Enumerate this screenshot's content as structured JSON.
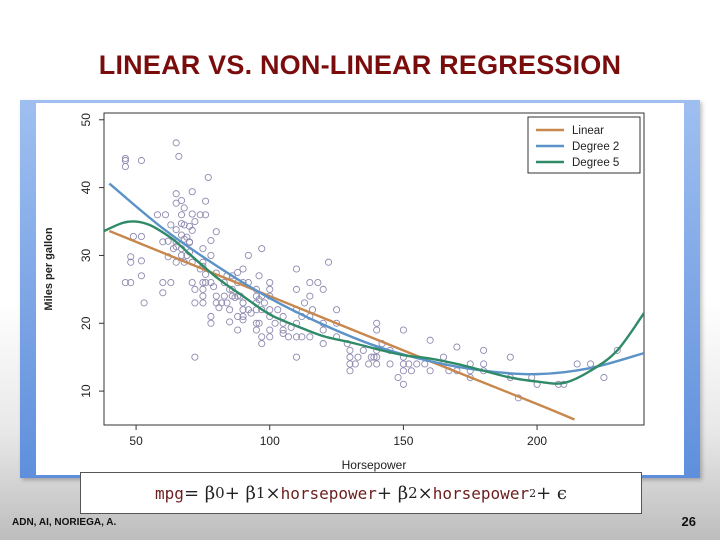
{
  "slide": {
    "title": "LINEAR VS. NON-LINEAR REGRESSION",
    "footer_left": "ADN, AI, NORIEGA, A.",
    "page_number": "26",
    "title_color": "#7a0c0c",
    "panel_color": "#6f9ae0"
  },
  "formula": {
    "p1": "mpg",
    "p2": " = β",
    "s0": "0",
    "p3": " + β",
    "s1": "1",
    "p4": " × ",
    "p5": "horsepower",
    "p6": " + β",
    "s2": "2",
    "p7": " × ",
    "p8": "horsepower",
    "exp": "2",
    "p9": " + ϵ"
  },
  "chart_data": {
    "type": "scatter",
    "xlabel": "Horsepower",
    "ylabel": "Miles per gallon",
    "xlim": [
      38,
      240
    ],
    "ylim": [
      5,
      51
    ],
    "xticks": [
      50,
      100,
      150,
      200
    ],
    "yticks": [
      10,
      20,
      30,
      40,
      50
    ],
    "legend_position": "top-right",
    "point_color": "#8e8ab0",
    "points": [
      [
        46,
        26
      ],
      [
        46,
        43.1
      ],
      [
        46,
        44.3
      ],
      [
        46,
        44
      ],
      [
        48,
        29
      ],
      [
        48,
        29.8
      ],
      [
        48,
        26
      ],
      [
        49,
        32.8
      ],
      [
        52,
        27
      ],
      [
        52,
        29.2
      ],
      [
        52,
        44
      ],
      [
        52,
        32.8
      ],
      [
        53,
        23
      ],
      [
        58,
        36
      ],
      [
        60,
        32
      ],
      [
        60,
        26
      ],
      [
        60,
        24.5
      ],
      [
        61,
        36
      ],
      [
        62,
        32.1
      ],
      [
        62,
        29.8
      ],
      [
        63,
        34.5
      ],
      [
        63,
        26
      ],
      [
        64,
        31
      ],
      [
        65,
        31.3
      ],
      [
        65,
        32
      ],
      [
        65,
        33.8
      ],
      [
        65,
        37.7
      ],
      [
        65,
        39.1
      ],
      [
        65,
        29
      ],
      [
        65,
        46.6
      ],
      [
        66,
        44.6
      ],
      [
        67,
        31
      ],
      [
        67,
        36
      ],
      [
        67,
        38.1
      ],
      [
        67,
        30
      ],
      [
        67,
        33
      ],
      [
        67,
        34.7
      ],
      [
        68,
        29
      ],
      [
        68,
        34.5
      ],
      [
        68,
        32.4
      ],
      [
        68,
        37
      ],
      [
        69,
        30
      ],
      [
        69,
        32.7
      ],
      [
        70,
        30.5
      ],
      [
        70,
        32
      ],
      [
        70,
        31.9
      ],
      [
        70,
        34.3
      ],
      [
        71,
        36.1
      ],
      [
        71,
        33.7
      ],
      [
        71,
        29
      ],
      [
        71,
        26
      ],
      [
        71,
        39.4
      ],
      [
        72,
        25
      ],
      [
        72,
        35
      ],
      [
        72,
        15
      ],
      [
        72,
        23
      ],
      [
        74,
        28
      ],
      [
        74,
        36
      ],
      [
        75,
        24
      ],
      [
        75,
        25
      ],
      [
        75,
        26
      ],
      [
        75,
        31
      ],
      [
        75,
        28.4
      ],
      [
        75,
        29
      ],
      [
        75,
        23
      ],
      [
        76,
        36
      ],
      [
        76,
        27.2
      ],
      [
        76,
        38
      ],
      [
        76,
        26
      ],
      [
        77,
        41.5
      ],
      [
        78,
        21
      ],
      [
        78,
        30
      ],
      [
        78,
        26
      ],
      [
        78,
        32.2
      ],
      [
        78,
        20
      ],
      [
        79,
        25.4
      ],
      [
        80,
        24
      ],
      [
        80,
        27.4
      ],
      [
        80,
        33.5
      ],
      [
        80,
        23
      ],
      [
        81,
        22.3
      ],
      [
        82,
        23
      ],
      [
        83,
        24
      ],
      [
        83,
        26
      ],
      [
        84,
        23
      ],
      [
        84,
        27
      ],
      [
        85,
        25
      ],
      [
        85,
        20.2
      ],
      [
        85,
        22
      ],
      [
        86,
        25
      ],
      [
        86,
        27
      ],
      [
        86,
        24
      ],
      [
        87,
        23.8
      ],
      [
        88,
        24
      ],
      [
        88,
        26
      ],
      [
        88,
        21
      ],
      [
        88,
        19
      ],
      [
        88,
        27.5
      ],
      [
        89,
        24
      ],
      [
        90,
        20.5
      ],
      [
        90,
        28
      ],
      [
        90,
        23
      ],
      [
        90,
        21
      ],
      [
        90,
        23
      ],
      [
        90,
        22
      ],
      [
        90,
        26
      ],
      [
        92,
        26
      ],
      [
        92,
        30
      ],
      [
        92,
        22
      ],
      [
        93,
        21.5
      ],
      [
        95,
        22
      ],
      [
        95,
        20
      ],
      [
        95,
        19
      ],
      [
        95,
        23
      ],
      [
        95,
        24
      ],
      [
        95,
        25
      ],
      [
        96,
        20
      ],
      [
        96,
        27
      ],
      [
        96,
        23.5
      ],
      [
        97,
        22
      ],
      [
        97,
        18
      ],
      [
        97,
        17
      ],
      [
        97,
        31
      ],
      [
        97,
        24
      ],
      [
        98,
        23
      ],
      [
        100,
        19
      ],
      [
        100,
        18
      ],
      [
        100,
        21
      ],
      [
        100,
        24
      ],
      [
        100,
        25
      ],
      [
        100,
        26
      ],
      [
        100,
        22
      ],
      [
        102,
        20
      ],
      [
        103,
        22
      ],
      [
        105,
        20
      ],
      [
        105,
        18.5
      ],
      [
        105,
        19
      ],
      [
        105,
        21
      ],
      [
        107,
        18
      ],
      [
        108,
        19.4
      ],
      [
        110,
        20
      ],
      [
        110,
        18
      ],
      [
        110,
        15
      ],
      [
        110,
        25
      ],
      [
        110,
        22
      ],
      [
        112,
        18
      ],
      [
        112,
        21
      ],
      [
        113,
        23
      ],
      [
        115,
        26
      ],
      [
        115,
        18
      ],
      [
        115,
        21
      ],
      [
        116,
        22
      ],
      [
        120,
        19
      ],
      [
        120,
        20
      ],
      [
        120,
        17
      ],
      [
        125,
        20
      ],
      [
        125,
        18
      ],
      [
        129,
        17
      ],
      [
        130,
        14
      ],
      [
        130,
        15
      ],
      [
        130,
        16
      ],
      [
        132,
        14
      ],
      [
        133,
        15
      ],
      [
        135,
        16
      ],
      [
        137,
        14
      ],
      [
        138,
        15
      ],
      [
        139,
        15
      ],
      [
        140,
        16
      ],
      [
        140,
        14
      ],
      [
        140,
        19
      ],
      [
        140,
        15
      ],
      [
        142,
        17
      ],
      [
        145,
        16
      ],
      [
        145,
        14
      ],
      [
        148,
        12
      ],
      [
        150,
        11
      ],
      [
        150,
        15
      ],
      [
        150,
        13
      ],
      [
        150,
        14
      ],
      [
        152,
        14
      ],
      [
        153,
        13
      ],
      [
        155,
        14
      ],
      [
        158,
        14
      ],
      [
        160,
        13
      ],
      [
        165,
        14
      ],
      [
        167,
        13
      ],
      [
        170,
        13
      ],
      [
        175,
        12
      ],
      [
        175,
        14
      ],
      [
        175,
        13
      ],
      [
        180,
        13
      ],
      [
        180,
        16
      ],
      [
        190,
        12
      ],
      [
        190,
        15
      ],
      [
        193,
        9
      ],
      [
        198,
        12
      ],
      [
        200,
        11
      ],
      [
        208,
        11
      ],
      [
        210,
        11
      ],
      [
        215,
        14
      ],
      [
        220,
        14
      ],
      [
        225,
        12
      ],
      [
        230,
        16
      ],
      [
        150,
        19
      ],
      [
        140,
        20
      ],
      [
        160,
        17.5
      ],
      [
        170,
        16.5
      ],
      [
        180,
        14
      ],
      [
        165,
        15
      ],
      [
        130,
        13
      ],
      [
        120,
        25
      ],
      [
        125,
        22
      ],
      [
        110,
        28
      ],
      [
        118,
        26
      ],
      [
        122,
        29
      ],
      [
        115,
        24
      ]
    ],
    "series": [
      {
        "name": "Linear",
        "color": "#c8874c",
        "degree": 1,
        "x": [
          40,
          80,
          120,
          160,
          200,
          214
        ],
        "y": [
          33.6,
          27.2,
          20.8,
          14.4,
          8.1,
          5.8
        ]
      },
      {
        "name": "Degree 2",
        "color": "#5b92c8",
        "degree": 2,
        "x": [
          40,
          60,
          80,
          100,
          120,
          140,
          160,
          180,
          200,
          220,
          240
        ],
        "y": [
          40.6,
          34.0,
          28.5,
          23.7,
          19.8,
          16.6,
          14.4,
          13.0,
          12.5,
          13.4,
          15.6
        ]
      },
      {
        "name": "Degree 5",
        "color": "#2f8a67",
        "degree": 5,
        "x": [
          38,
          45,
          50,
          55,
          60,
          65,
          70,
          80,
          90,
          100,
          110,
          120,
          130,
          140,
          150,
          160,
          170,
          180,
          190,
          200,
          210,
          220,
          230,
          240
        ],
        "y": [
          33.6,
          34.8,
          35.0,
          34.5,
          33.4,
          32.0,
          30.2,
          26.8,
          24.0,
          21.3,
          19.6,
          18.1,
          17.2,
          16.2,
          15.3,
          14.8,
          14.0,
          13.0,
          12.0,
          11.4,
          11.2,
          13.0,
          16.0,
          21.5
        ]
      }
    ]
  }
}
